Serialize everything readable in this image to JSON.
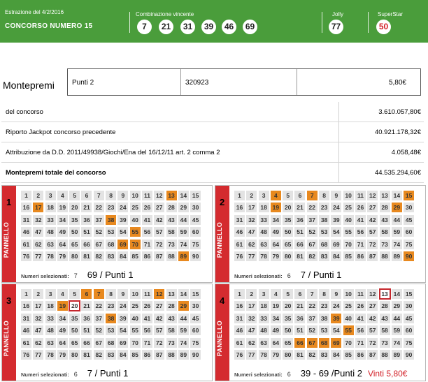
{
  "header": {
    "date": "Estrazione del 4/2/2016",
    "contest": "CONCORSO NUMERO 15",
    "winning_label": "Combinazione vincente",
    "winning_numbers": [
      "7",
      "21",
      "31",
      "39",
      "46",
      "69"
    ],
    "jolly_label": "Jolly",
    "jolly": "77",
    "superstar_label": "SuperStar",
    "superstar": "50"
  },
  "montepremi": {
    "label": "Montepremi",
    "category": "Punti 2",
    "winners": "320923",
    "prize": "5,80€"
  },
  "table": [
    {
      "label": "del concorso",
      "value": "3.610.057,80€"
    },
    {
      "label": "Riporto Jackpot concorso precedente",
      "value": "40.921.178,32€"
    },
    {
      "label": "Attribuzione da D.D. 2011/49938/Giochi/Ena del 16/12/11 art. 2 comma 2",
      "value": "4.058,48€"
    },
    {
      "label": "Montepremi totale del concorso",
      "value": "44.535.294,60€"
    }
  ],
  "panel_word": "PANNELLO",
  "numbers_selected_label": "Numeri selezionati:",
  "panels": [
    {
      "number": "1",
      "selected": [
        13,
        17,
        38,
        55,
        69,
        70,
        89
      ],
      "drawn": [],
      "count": "7",
      "result": "69 / Punti 1",
      "win": ""
    },
    {
      "number": "2",
      "selected": [
        4,
        7,
        15,
        19,
        29,
        90
      ],
      "drawn": [],
      "count": "6",
      "result": "7 / Punti 1",
      "win": ""
    },
    {
      "number": "3",
      "selected": [
        6,
        7,
        12,
        19,
        29,
        38
      ],
      "drawn": [
        20
      ],
      "count": "6",
      "result": "7 / Punti 1",
      "win": ""
    },
    {
      "number": "4",
      "selected": [
        39,
        55,
        66,
        67,
        68,
        69
      ],
      "drawn": [
        13
      ],
      "count": "6",
      "result": "39 - 69 /Punti  2",
      "win": "Vinti 5,80€"
    }
  ]
}
